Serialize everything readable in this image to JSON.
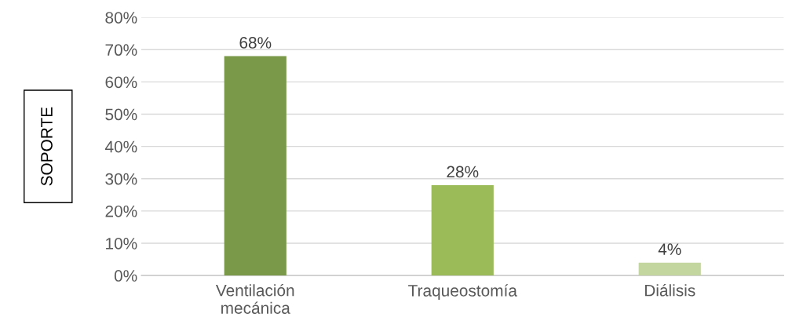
{
  "chart_data": {
    "type": "bar",
    "ylabel": "SOPORTE",
    "categories": [
      "Ventilación\nmecánica",
      "Traqueostomía",
      "Diálisis"
    ],
    "values": [
      68,
      28,
      4
    ],
    "colors": [
      "#7a9a4a",
      "#9bbb59",
      "#c4d6a0"
    ],
    "value_labels": [
      "68%",
      "28%",
      "4%"
    ],
    "ylim": [
      0,
      80
    ],
    "yticks": [
      {
        "value": 0,
        "label": "0%"
      },
      {
        "value": 10,
        "label": "10%"
      },
      {
        "value": 20,
        "label": "20%"
      },
      {
        "value": 30,
        "label": "30%"
      },
      {
        "value": 40,
        "label": "40%"
      },
      {
        "value": 50,
        "label": "50%"
      },
      {
        "value": 60,
        "label": "60%"
      },
      {
        "value": 70,
        "label": "70%"
      },
      {
        "value": 80,
        "label": "80%"
      }
    ],
    "grid": "y"
  }
}
